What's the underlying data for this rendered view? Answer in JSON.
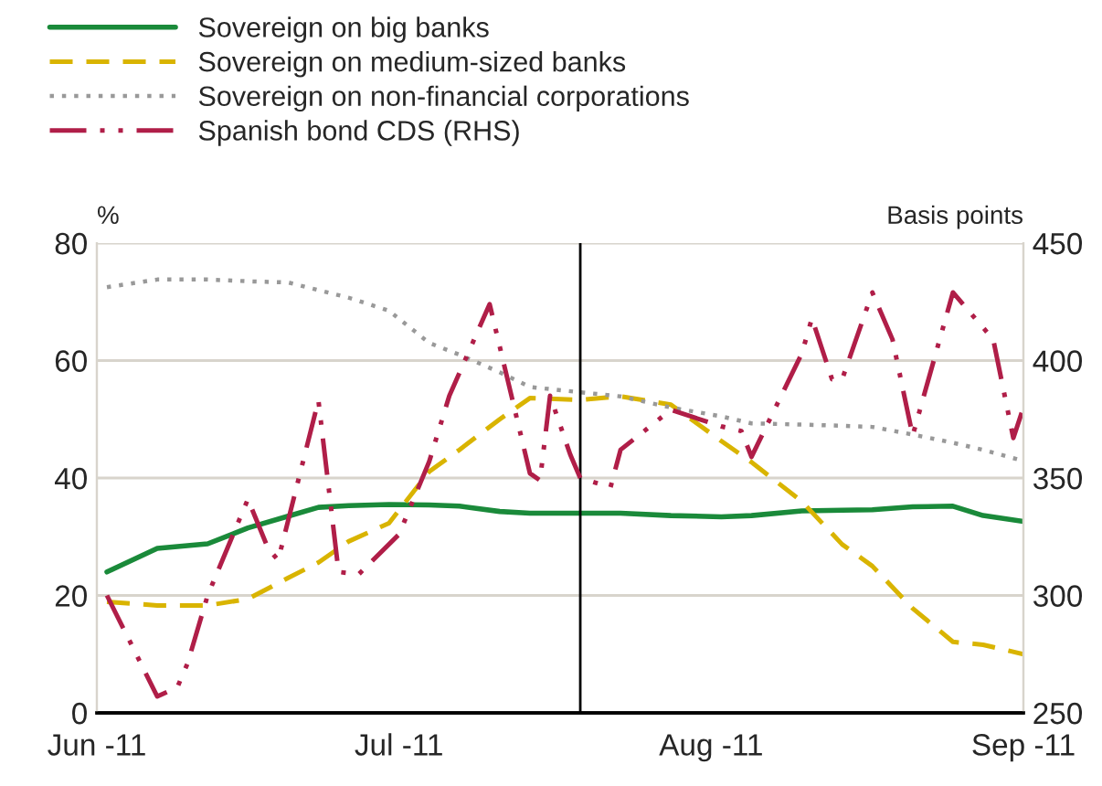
{
  "chart_data": {
    "type": "line",
    "ylabel": "%",
    "y2label": "Basis points",
    "ylim": [
      0,
      80
    ],
    "yticks": [
      0,
      20,
      40,
      60,
      80
    ],
    "y2lim": [
      250,
      450
    ],
    "y2ticks": [
      250,
      300,
      350,
      400,
      450
    ],
    "xlim": [
      "2011-06-01",
      "2011-09-01"
    ],
    "xticks": [
      {
        "value": "2011-06-01",
        "label": "Jun -11"
      },
      {
        "value": "2011-07-01",
        "label": "Jul -11"
      },
      {
        "value": "2011-08-01",
        "label": "Aug -11"
      },
      {
        "value": "2011-09-01",
        "label": "Sep -11"
      }
    ],
    "x": [
      "2011-06-02",
      "2011-06-07",
      "2011-06-12",
      "2011-06-16",
      "2011-06-20",
      "2011-06-23",
      "2011-06-26",
      "2011-06-30",
      "2011-07-04",
      "2011-07-07",
      "2011-07-11",
      "2011-07-14",
      "2011-07-19",
      "2011-07-23",
      "2011-07-28",
      "2011-08-02",
      "2011-08-05",
      "2011-08-10",
      "2011-08-14",
      "2011-08-17",
      "2011-08-21",
      "2011-08-25",
      "2011-08-28",
      "2011-09-01"
    ],
    "series": [
      {
        "name": "Sovereign on big banks",
        "color": "#1a8a3a",
        "line_style": "solid",
        "values": [
          24,
          28,
          28.8,
          31.5,
          33.5,
          35,
          35.3,
          35.5,
          35.4,
          35.2,
          34.3,
          34,
          34,
          34,
          33.6,
          33.4,
          33.6,
          34.4,
          34.5,
          34.6,
          35.1,
          35.2,
          33.6,
          32.6
        ]
      },
      {
        "name": "Sovereign on medium-sized banks",
        "color": "#d9b400",
        "line_style": "dashed",
        "values": [
          18.9,
          18.3,
          18.3,
          19.4,
          23,
          25.6,
          29.2,
          32.3,
          41.1,
          44.8,
          50,
          53.6,
          53.3,
          53.9,
          52.5,
          46.3,
          42.7,
          36,
          28.7,
          25,
          17.8,
          12.1,
          11.6,
          10
        ]
      },
      {
        "name": "Sovereign on non-financial corporations",
        "color": "#999999",
        "line_style": "dotted",
        "values": [
          72.5,
          73.8,
          73.8,
          73.5,
          73.3,
          72,
          70.7,
          68.5,
          63,
          61,
          58,
          55.5,
          54.6,
          53.9,
          52,
          50.5,
          49.3,
          49.1,
          48.9,
          48.7,
          47.4,
          46,
          44.8,
          42.9
        ]
      },
      {
        "name": "Spanish bond CDS (RHS)",
        "color": "#b01e48",
        "line_style": "dashdot",
        "axis": "y2",
        "x": [
          "2011-06-02",
          "2011-06-07",
          "2011-06-09",
          "2011-06-10",
          "2011-06-12",
          "2011-06-16",
          "2011-06-18",
          "2011-06-19",
          "2011-06-23",
          "2011-06-25",
          "2011-06-27",
          "2011-07-01",
          "2011-07-04",
          "2011-07-06",
          "2011-07-10",
          "2011-07-14",
          "2011-07-15",
          "2011-07-16",
          "2011-07-18",
          "2011-07-19",
          "2011-07-22",
          "2011-07-23",
          "2011-07-28",
          "2011-08-02",
          "2011-08-04",
          "2011-08-05",
          "2011-08-10",
          "2011-08-11",
          "2011-08-13",
          "2011-08-14",
          "2011-08-17",
          "2011-08-19",
          "2011-08-21",
          "2011-08-25",
          "2011-08-29",
          "2011-08-31",
          "2011-09-01"
        ],
        "values": [
          300,
          257,
          261,
          271,
          300,
          341,
          320,
          315,
          383,
          310,
          309,
          326,
          357,
          385,
          424,
          352,
          349,
          385,
          360,
          350,
          346,
          362,
          379,
          372,
          370,
          359,
          403,
          418,
          392,
          392,
          429,
          409,
          368,
          429,
          409,
          367,
          380
        ]
      }
    ],
    "ref_lines": [
      {
        "axis": "x",
        "value": "2011-07-19",
        "color": "#000000",
        "line_style": "solid"
      }
    ],
    "grid": "y",
    "legend": "top left"
  }
}
